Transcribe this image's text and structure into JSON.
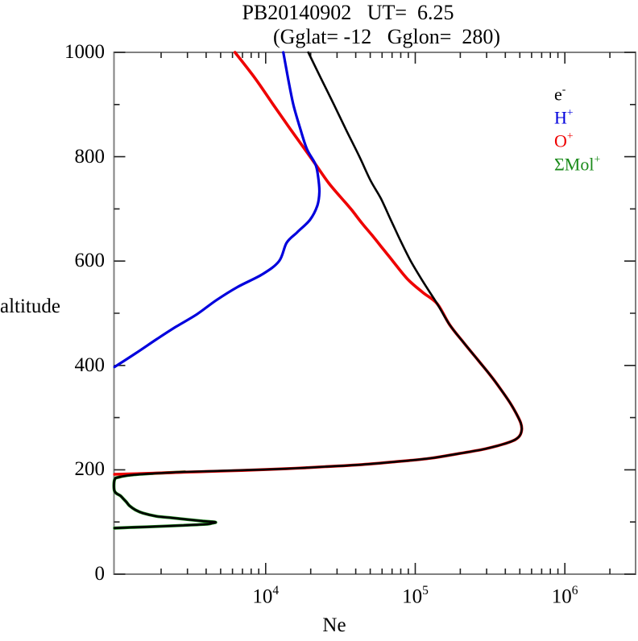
{
  "title": "PB20140902   UT=  6.25",
  "subtitle": "(Gglat= -12   Gglon=  280)",
  "legend": [
    {
      "name": "electron",
      "label": "e",
      "sup": "-",
      "color": "#000000"
    },
    {
      "name": "h-plus",
      "label": "H",
      "sup": "+",
      "color": "#0000dd"
    },
    {
      "name": "o-plus",
      "label": "O",
      "sup": "+",
      "color": "#ee0000"
    },
    {
      "name": "mol-plus",
      "label": "ΣMol",
      "sup": "+",
      "color": "#1a8a1a"
    }
  ],
  "frame_color": "#808080",
  "tick_color": "#222222",
  "chart_data": {
    "type": "line",
    "title": "PB20140902   UT=  6.25",
    "subtitle": "(Gglat= -12   Gglon=  280)",
    "xlabel": "Ne",
    "ylabel": "altitude",
    "x_scale": "log10",
    "xlim_log10": [
      2.986,
      6.473
    ],
    "ylim": [
      0,
      1000
    ],
    "grid": false,
    "legend_position": "upper right inside",
    "x_major_tick_logs": [
      4,
      5,
      6
    ],
    "x_minor_tick_logs": [
      3.301,
      3.477,
      3.602,
      3.699,
      3.778,
      3.845,
      3.903,
      3.954,
      4.301,
      4.477,
      4.602,
      4.699,
      4.778,
      4.845,
      4.903,
      4.954,
      5.301,
      5.477,
      5.602,
      5.699,
      5.778,
      5.845,
      5.903,
      5.954,
      6.301
    ],
    "x_tick_labels": [
      {
        "base": "10",
        "exp": "4",
        "log": 4
      },
      {
        "base": "10",
        "exp": "5",
        "log": 5
      },
      {
        "base": "10",
        "exp": "6",
        "log": 6
      }
    ],
    "y_major_ticks": [
      0,
      200,
      400,
      600,
      800,
      1000
    ],
    "y_minor_ticks": [
      100,
      300,
      500,
      700,
      900
    ],
    "y_tick_labels": [
      {
        "text": "0",
        "alt": 0
      },
      {
        "text": "200",
        "alt": 200
      },
      {
        "text": "400",
        "alt": 400
      },
      {
        "text": "600",
        "alt": 600
      },
      {
        "text": "800",
        "alt": 800
      },
      {
        "text": "1000",
        "alt": 1000
      }
    ],
    "series": [
      {
        "name": "sum-molecular-ions",
        "label": "ΣMol+",
        "color": "#1a8a1a",
        "width": 3.8,
        "points_log10ne_alt": [
          [
            3.46,
            196
          ],
          [
            3.25,
            193
          ],
          [
            3.1,
            190
          ],
          [
            3.02,
            186
          ],
          [
            2.99,
            181
          ],
          [
            2.99,
            159
          ],
          [
            3.03,
            150
          ],
          [
            3.05,
            144
          ],
          [
            3.07,
            138
          ],
          [
            3.09,
            131
          ],
          [
            3.13,
            123
          ],
          [
            3.18,
            117
          ],
          [
            3.27,
            111
          ],
          [
            3.37,
            108
          ],
          [
            3.47,
            105
          ],
          [
            3.57,
            102
          ],
          [
            3.64,
            100.5
          ],
          [
            3.666,
            99.3
          ],
          [
            3.64,
            97.5
          ],
          [
            3.6,
            95.7
          ],
          [
            3.45,
            93.5
          ],
          [
            3.31,
            91.8
          ],
          [
            3.19,
            90.5
          ],
          [
            3.09,
            89.5
          ],
          [
            2.99,
            88.2
          ]
        ]
      },
      {
        "name": "o-plus",
        "label": "O+",
        "color": "#ee0000",
        "width": 3.6,
        "points_log10ne_alt": [
          [
            3.795,
            1000
          ],
          [
            3.93,
            950
          ],
          [
            4.05,
            900
          ],
          [
            4.16,
            855
          ],
          [
            4.26,
            815
          ],
          [
            4.332,
            786
          ],
          [
            4.42,
            750
          ],
          [
            4.5,
            723
          ],
          [
            4.575,
            698
          ],
          [
            4.645,
            672
          ],
          [
            4.71,
            650
          ],
          [
            4.78,
            625
          ],
          [
            4.85,
            600
          ],
          [
            4.95,
            565
          ],
          [
            5.05,
            540
          ],
          [
            5.147,
            518
          ],
          [
            5.23,
            478
          ],
          [
            5.32,
            445
          ],
          [
            5.42,
            410
          ],
          [
            5.5,
            382
          ],
          [
            5.57,
            355
          ],
          [
            5.63,
            330
          ],
          [
            5.675,
            308
          ],
          [
            5.705,
            290
          ],
          [
            5.712,
            278
          ],
          [
            5.7,
            266
          ],
          [
            5.67,
            258
          ],
          [
            5.62,
            252
          ],
          [
            5.55,
            246
          ],
          [
            5.45,
            239
          ],
          [
            5.29,
            231
          ],
          [
            5.1,
            222
          ],
          [
            4.85,
            215
          ],
          [
            4.645,
            210
          ],
          [
            4.4,
            206
          ],
          [
            4.2,
            203
          ],
          [
            4.0,
            200.5
          ],
          [
            3.7,
            197.5
          ],
          [
            3.46,
            195.5
          ],
          [
            3.2,
            193
          ],
          [
            2.99,
            191.3
          ]
        ]
      },
      {
        "name": "h-plus",
        "label": "H+",
        "color": "#0000dd",
        "width": 3.2,
        "points_log10ne_alt": [
          [
            4.118,
            1000
          ],
          [
            4.15,
            950
          ],
          [
            4.185,
            900
          ],
          [
            4.23,
            855
          ],
          [
            4.275,
            815
          ],
          [
            4.332,
            786
          ],
          [
            4.35,
            763
          ],
          [
            4.359,
            733
          ],
          [
            4.345,
            706
          ],
          [
            4.296,
            679
          ],
          [
            4.21,
            655
          ],
          [
            4.14,
            635
          ],
          [
            4.09,
            600
          ],
          [
            3.98,
            575
          ],
          [
            3.81,
            550
          ],
          [
            3.67,
            525
          ],
          [
            3.54,
            498
          ],
          [
            3.4,
            474
          ],
          [
            3.27,
            450
          ],
          [
            3.13,
            423
          ],
          [
            2.99,
            397
          ]
        ]
      },
      {
        "name": "electron",
        "label": "e-",
        "color": "#000000",
        "width": 2.6,
        "points_log10ne_alt": [
          [
            4.285,
            1000
          ],
          [
            4.37,
            950
          ],
          [
            4.456,
            900
          ],
          [
            4.54,
            850
          ],
          [
            4.627,
            800
          ],
          [
            4.7,
            755
          ],
          [
            4.77,
            720
          ],
          [
            4.835,
            680
          ],
          [
            4.9,
            640
          ],
          [
            4.97,
            600
          ],
          [
            5.06,
            557
          ],
          [
            5.147,
            518
          ],
          [
            5.23,
            478
          ],
          [
            5.32,
            445
          ],
          [
            5.42,
            410
          ],
          [
            5.5,
            382
          ],
          [
            5.57,
            355
          ],
          [
            5.63,
            330
          ],
          [
            5.675,
            308
          ],
          [
            5.705,
            290
          ],
          [
            5.712,
            278
          ],
          [
            5.7,
            266
          ],
          [
            5.67,
            258
          ],
          [
            5.62,
            252
          ],
          [
            5.55,
            246
          ],
          [
            5.45,
            239
          ],
          [
            5.29,
            231
          ],
          [
            5.1,
            222
          ],
          [
            4.85,
            215
          ],
          [
            4.645,
            210
          ],
          [
            4.4,
            206
          ],
          [
            4.2,
            203
          ],
          [
            4.0,
            200.5
          ],
          [
            3.7,
            198
          ],
          [
            3.46,
            196
          ],
          [
            3.25,
            193
          ],
          [
            3.1,
            190
          ],
          [
            3.02,
            186
          ],
          [
            2.99,
            181
          ],
          [
            2.99,
            159
          ],
          [
            3.03,
            150
          ],
          [
            3.05,
            144
          ],
          [
            3.07,
            138
          ],
          [
            3.09,
            131
          ],
          [
            3.13,
            123
          ],
          [
            3.18,
            117
          ],
          [
            3.27,
            111
          ],
          [
            3.37,
            108
          ],
          [
            3.47,
            105
          ],
          [
            3.57,
            102
          ],
          [
            3.64,
            100.5
          ],
          [
            3.666,
            99.3
          ],
          [
            3.64,
            97.5
          ],
          [
            3.6,
            95.7
          ],
          [
            3.45,
            93.5
          ],
          [
            3.31,
            91.8
          ],
          [
            3.19,
            90.5
          ],
          [
            3.09,
            89.5
          ],
          [
            2.99,
            88.2
          ]
        ]
      }
    ]
  }
}
